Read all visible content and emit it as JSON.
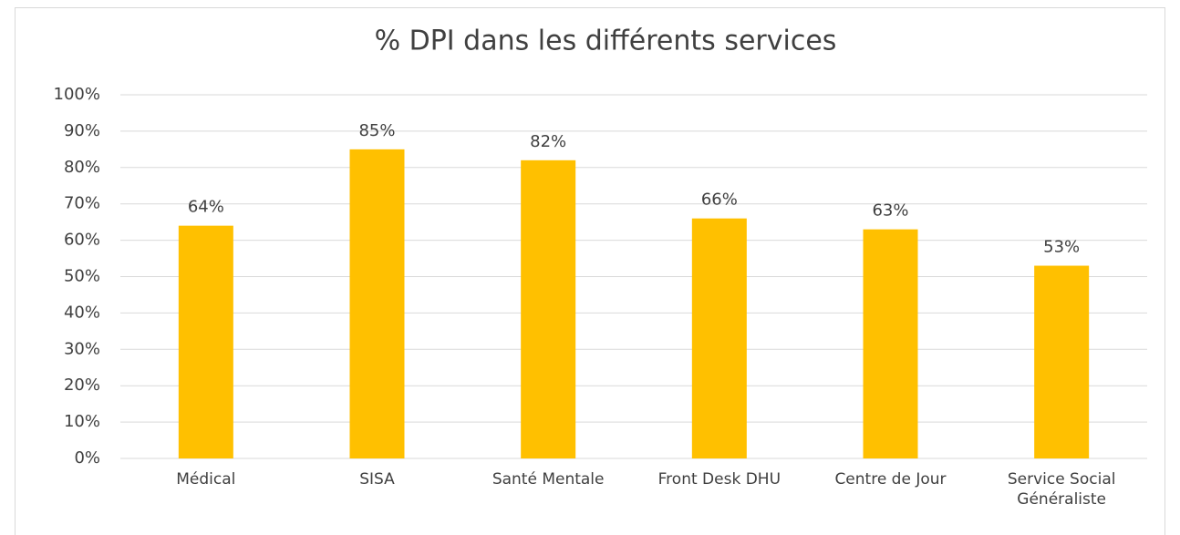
{
  "chart_data": {
    "type": "bar",
    "title": "% DPI dans les différents services",
    "categories": [
      "Médical",
      "SISA",
      "Santé Mentale",
      "Front Desk DHU",
      "Centre de Jour",
      "Service Social Généraliste"
    ],
    "values": [
      64,
      85,
      82,
      66,
      63,
      53
    ],
    "value_labels": [
      "64%",
      "85%",
      "82%",
      "66%",
      "63%",
      "53%"
    ],
    "color": "#ffc000",
    "ylim": [
      0,
      100
    ],
    "yticks": [
      {
        "value": 0,
        "label": "0%"
      },
      {
        "value": 10,
        "label": "10%"
      },
      {
        "value": 20,
        "label": "20%"
      },
      {
        "value": 30,
        "label": "30%"
      },
      {
        "value": 40,
        "label": "40%"
      },
      {
        "value": 50,
        "label": "50%"
      },
      {
        "value": 60,
        "label": "60%"
      },
      {
        "value": 70,
        "label": "70%"
      },
      {
        "value": 80,
        "label": "80%"
      },
      {
        "value": 90,
        "label": "90%"
      },
      {
        "value": 100,
        "label": "100%"
      }
    ],
    "grid": true
  }
}
